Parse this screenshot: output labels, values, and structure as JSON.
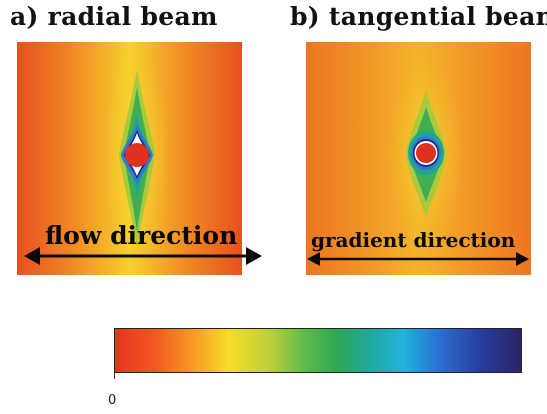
{
  "panels": {
    "a": {
      "title": "a) radial beam",
      "direction_label": "flow direction"
    },
    "b": {
      "title": "b) tangential beam",
      "direction_label": "gradient direction"
    }
  },
  "colorbar": {
    "min_label": "0",
    "colors": [
      "#e63320",
      "#f7a024",
      "#f7dd28",
      "#5cb94a",
      "#21a8a0",
      "#1fb4de",
      "#283c9e",
      "#2a2566"
    ]
  },
  "icons": [
    "double-arrow-icon",
    "beamstop-icon"
  ]
}
